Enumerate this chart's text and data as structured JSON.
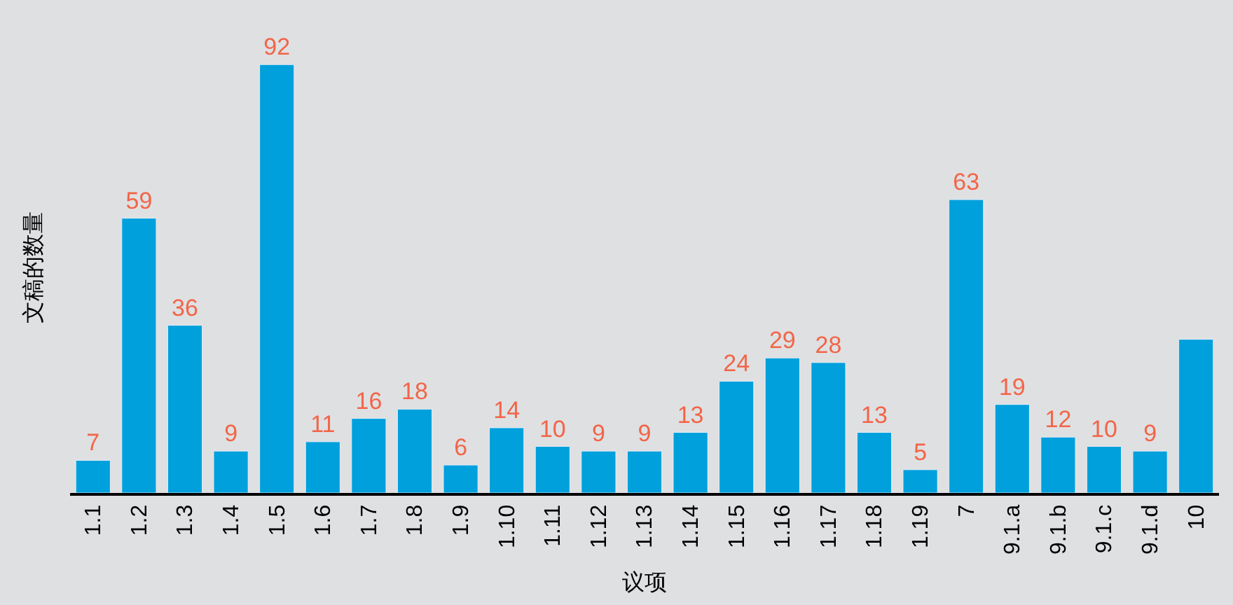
{
  "chart_data": {
    "type": "bar",
    "xlabel": "议项",
    "ylabel": "文稿的数量",
    "categories": [
      "1.1",
      "1.2",
      "1.3",
      "1.4",
      "1.5",
      "1.6",
      "1.7",
      "1.8",
      "1.9",
      "1.10",
      "1.11",
      "1.12",
      "1.13",
      "1.14",
      "1.15",
      "1.16",
      "1.17",
      "1.18",
      "1.19",
      "7",
      "9.1.a",
      "9.1.b",
      "9.1.c",
      "9.1.d",
      "10"
    ],
    "values": [
      7,
      59,
      36,
      9,
      92,
      11,
      16,
      18,
      6,
      14,
      10,
      9,
      9,
      13,
      24,
      29,
      28,
      13,
      5,
      63,
      19,
      12,
      10,
      9,
      33
    ],
    "value_labels": [
      "7",
      "59",
      "36",
      "9",
      "92",
      "11",
      "16",
      "18",
      "6",
      "14",
      "10",
      "9",
      "9",
      "13",
      "24",
      "29",
      "28",
      "13",
      "5",
      "63",
      "19",
      "12",
      "10",
      "9",
      null
    ],
    "color": "#00a0dc",
    "grid": false,
    "legend": false
  }
}
